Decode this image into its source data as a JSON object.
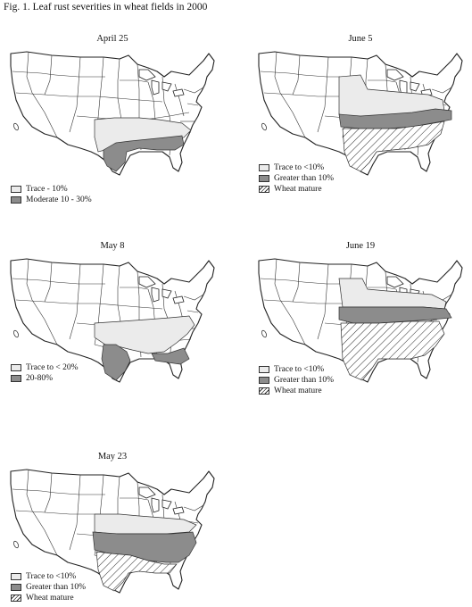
{
  "figure": {
    "title": "Fig. 1.  Leaf rust severities in wheat fields in 2000"
  },
  "colors": {
    "trace": "#ebebeb",
    "moderate": "#8c8c8c",
    "mature_hatch": "#333333",
    "border": "#333333"
  },
  "panels": [
    {
      "id": "april25",
      "title": "April 25",
      "legend": [
        {
          "kind": "trace",
          "label": "Trace - 10%"
        },
        {
          "kind": "moderate",
          "label": "Moderate 10 - 30%"
        }
      ]
    },
    {
      "id": "june5",
      "title": "June 5",
      "legend": [
        {
          "kind": "trace",
          "label": "Trace to <10%"
        },
        {
          "kind": "moderate",
          "label": "Greater than 10%"
        },
        {
          "kind": "mature",
          "label": "Wheat mature"
        }
      ]
    },
    {
      "id": "may8",
      "title": "May 8",
      "legend": [
        {
          "kind": "trace",
          "label": "Trace to < 20%"
        },
        {
          "kind": "moderate",
          "label": "20-80%"
        }
      ]
    },
    {
      "id": "june19",
      "title": "June 19",
      "legend": [
        {
          "kind": "trace",
          "label": "Trace to <10%"
        },
        {
          "kind": "moderate",
          "label": "Greater than 10%"
        },
        {
          "kind": "mature",
          "label": "Wheat mature"
        }
      ]
    },
    {
      "id": "may23",
      "title": "May 23",
      "legend": [
        {
          "kind": "trace",
          "label": "Trace to <10%"
        },
        {
          "kind": "moderate",
          "label": "Greater than 10%"
        },
        {
          "kind": "mature",
          "label": "Wheat mature"
        }
      ]
    }
  ]
}
